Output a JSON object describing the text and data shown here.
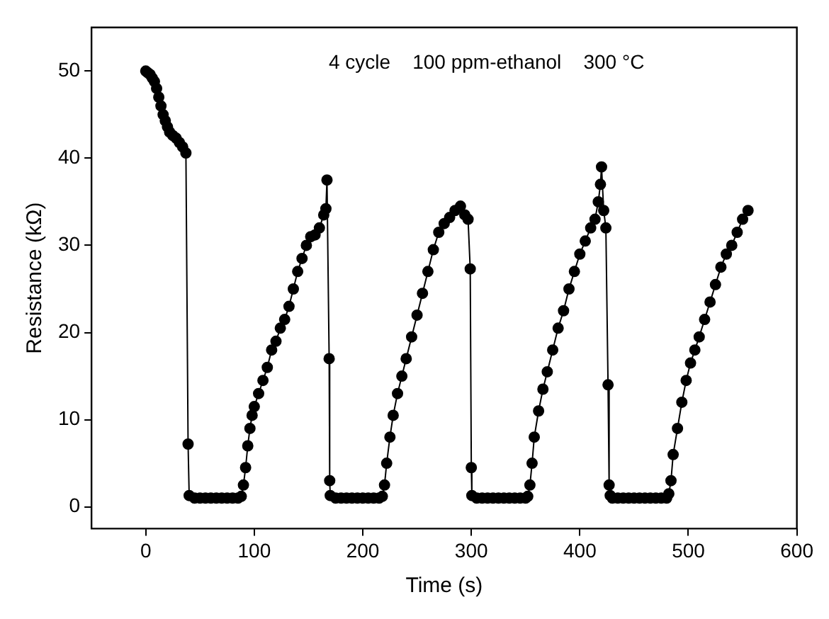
{
  "chart_data": {
    "type": "line",
    "xlabel": "Time (s)",
    "ylabel": "Resistance (kΩ)",
    "annotations": [
      "4 cycle    100 ppm-ethanol    300 °C"
    ],
    "xlim": [
      -50,
      600
    ],
    "xticks": [
      0,
      100,
      200,
      300,
      400,
      500,
      600
    ],
    "ylim": [
      -2.5,
      55
    ],
    "yticks": [
      0,
      10,
      20,
      30,
      40,
      50
    ],
    "grid": false,
    "legend": false,
    "marker": "circle",
    "line_style": "solid",
    "series": [
      {
        "color": "#000000",
        "x": [
          0,
          2,
          4,
          6,
          8,
          10,
          12,
          14,
          16,
          18,
          20,
          22,
          25,
          28,
          31,
          34,
          37,
          39,
          40,
          45,
          50,
          55,
          60,
          65,
          70,
          75,
          80,
          85,
          88,
          90,
          92,
          94,
          96,
          98,
          100,
          104,
          108,
          112,
          116,
          120,
          124,
          128,
          132,
          136,
          140,
          144,
          148,
          152,
          156,
          160,
          164,
          166,
          167,
          169,
          169.5,
          170,
          175,
          180,
          185,
          190,
          195,
          200,
          205,
          210,
          215,
          218,
          220,
          222,
          225,
          228,
          232,
          236,
          240,
          245,
          250,
          255,
          260,
          265,
          270,
          275,
          280,
          285,
          290,
          294,
          297,
          299,
          300,
          300.5,
          305,
          310,
          315,
          320,
          325,
          330,
          335,
          340,
          345,
          350,
          352,
          354,
          356,
          358,
          362,
          366,
          370,
          375,
          380,
          385,
          390,
          395,
          400,
          405,
          410,
          414,
          417,
          419,
          420,
          422,
          424,
          426,
          427,
          428,
          430,
          435,
          440,
          445,
          450,
          455,
          460,
          465,
          470,
          475,
          480,
          482,
          484,
          486,
          490,
          494,
          498,
          502,
          506,
          510,
          515,
          520,
          525,
          530,
          535,
          540,
          545,
          550,
          555
        ],
        "values": [
          50,
          49.8,
          49.6,
          49.2,
          48.8,
          48,
          47,
          46,
          45,
          44.3,
          43.6,
          43,
          42.6,
          42.3,
          41.8,
          41.3,
          40.6,
          7.2,
          1.3,
          1,
          1,
          1,
          1,
          1,
          1,
          1,
          1,
          1,
          1.2,
          2.5,
          4.5,
          7,
          9,
          10.5,
          11.5,
          13,
          14.5,
          16,
          18,
          19,
          20.5,
          21.5,
          23,
          25,
          27,
          28.5,
          30,
          31,
          31.2,
          32,
          33.5,
          34.2,
          37.5,
          17,
          3,
          1.3,
          1,
          1,
          1,
          1,
          1,
          1,
          1,
          1,
          1,
          1.2,
          2.5,
          5,
          8,
          10.5,
          13,
          15,
          17,
          19.5,
          22,
          24.5,
          27,
          29.5,
          31.5,
          32.5,
          33.2,
          34,
          34.5,
          33.5,
          33,
          27.3,
          4.5,
          1.3,
          1,
          1,
          1,
          1,
          1,
          1,
          1,
          1,
          1,
          1,
          1.2,
          2.5,
          5,
          8,
          11,
          13.5,
          15.5,
          18,
          20.5,
          22.5,
          25,
          27,
          29,
          30.5,
          32,
          33,
          35,
          37,
          39,
          34,
          32,
          14,
          2.5,
          1.3,
          1,
          1,
          1,
          1,
          1,
          1,
          1,
          1,
          1,
          1,
          1,
          1.5,
          3,
          6,
          9,
          12,
          14.5,
          16.5,
          18,
          19.5,
          21.5,
          23.5,
          25.5,
          27.5,
          29,
          30,
          31.5,
          33,
          34
        ]
      }
    ]
  }
}
